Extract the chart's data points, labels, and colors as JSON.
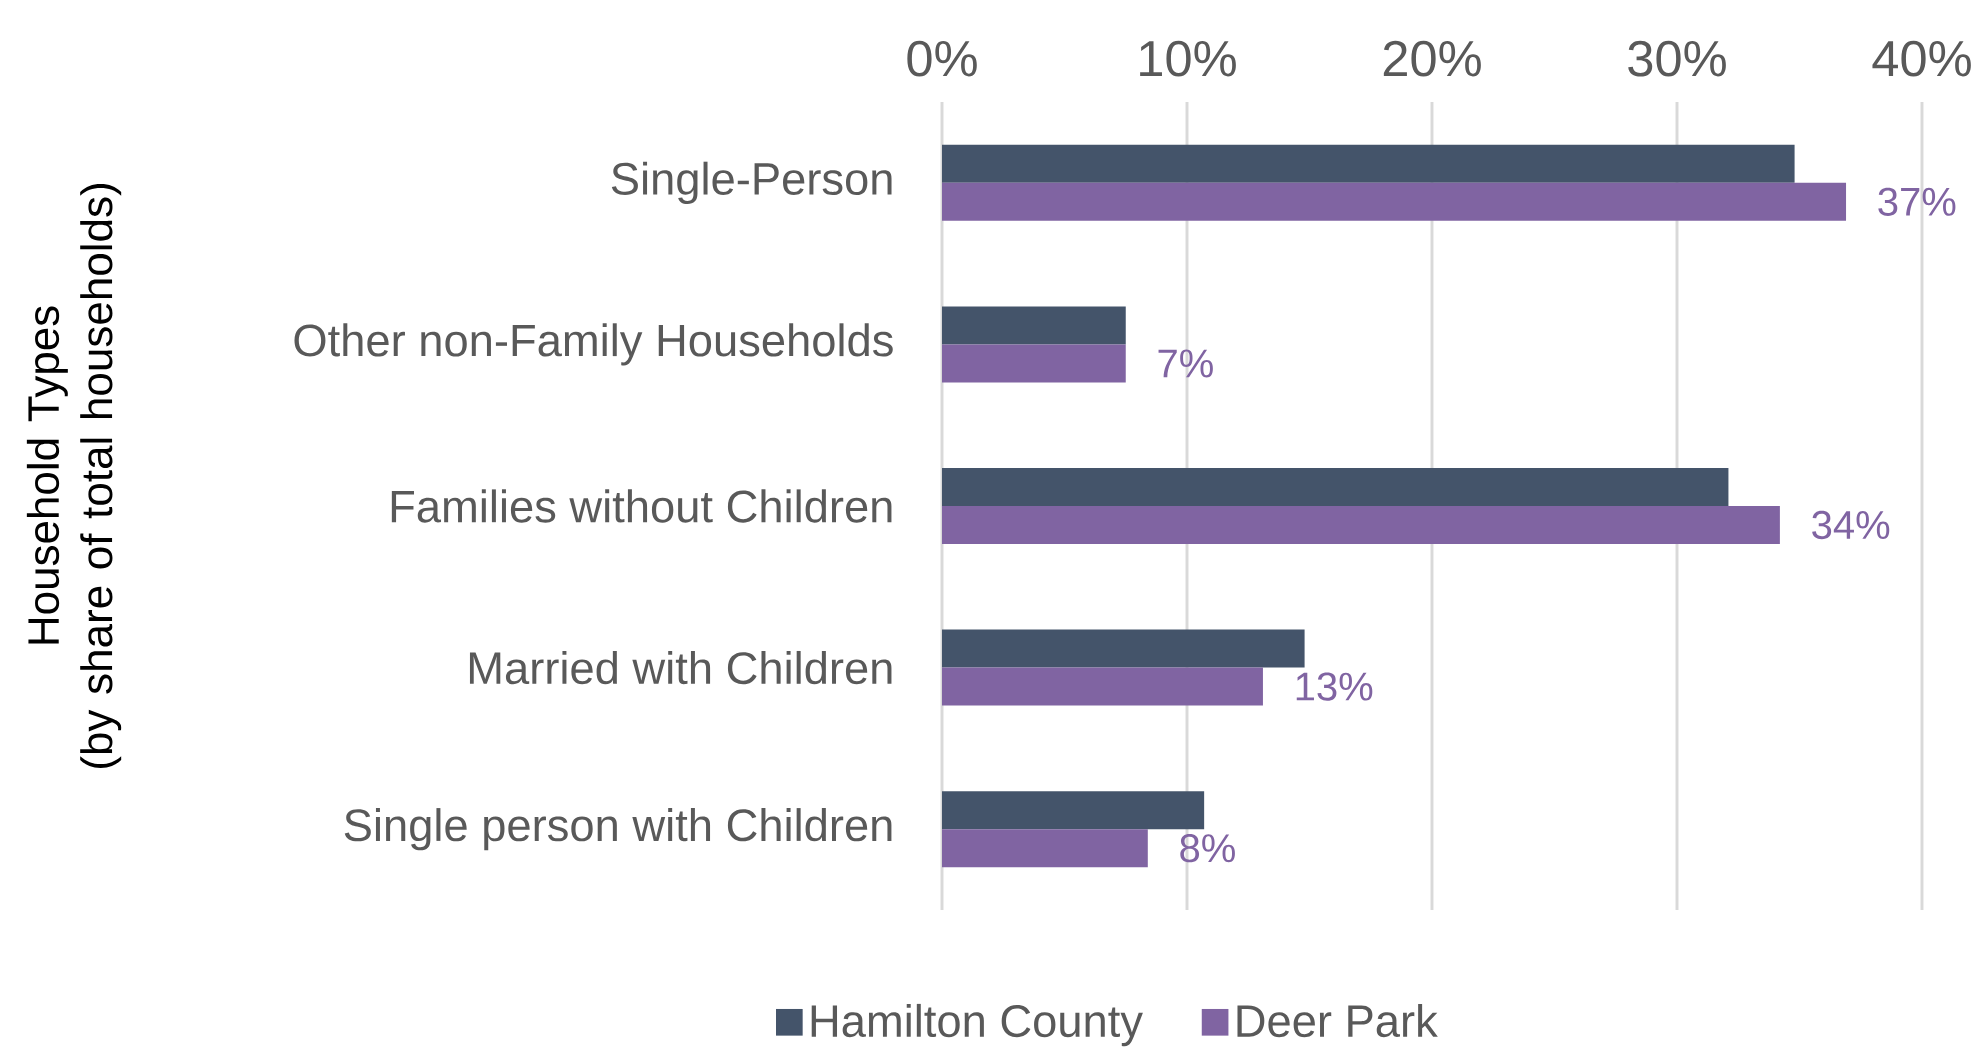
{
  "chart_data": {
    "type": "bar",
    "orientation": "horizontal",
    "ylabel": "Household Types (by share of total households)",
    "categories": [
      "Single-Person",
      "Other non-Family Households",
      "Families without Children",
      "Married with Children",
      "Single person with Children"
    ],
    "series": [
      {
        "name": "Hamilton County",
        "color": "#44546a",
        "values": [
          34.8,
          7.5,
          32.1,
          14.8,
          10.7
        ]
      },
      {
        "name": "Deer Park",
        "color": "#8064a2",
        "values": [
          36.9,
          7.5,
          34.2,
          13.1,
          8.4
        ],
        "value_labels": [
          "37%",
          "7%",
          "34%",
          "13%",
          "8%"
        ]
      }
    ],
    "xlim": [
      0,
      40
    ],
    "xticks": [
      {
        "value": 0,
        "label": "0%"
      },
      {
        "value": 10,
        "label": "10%"
      },
      {
        "value": 20,
        "label": "20%"
      },
      {
        "value": 30,
        "label": "30%"
      },
      {
        "value": 40,
        "label": "40%"
      }
    ],
    "grid": "x",
    "legend": "bottom"
  }
}
